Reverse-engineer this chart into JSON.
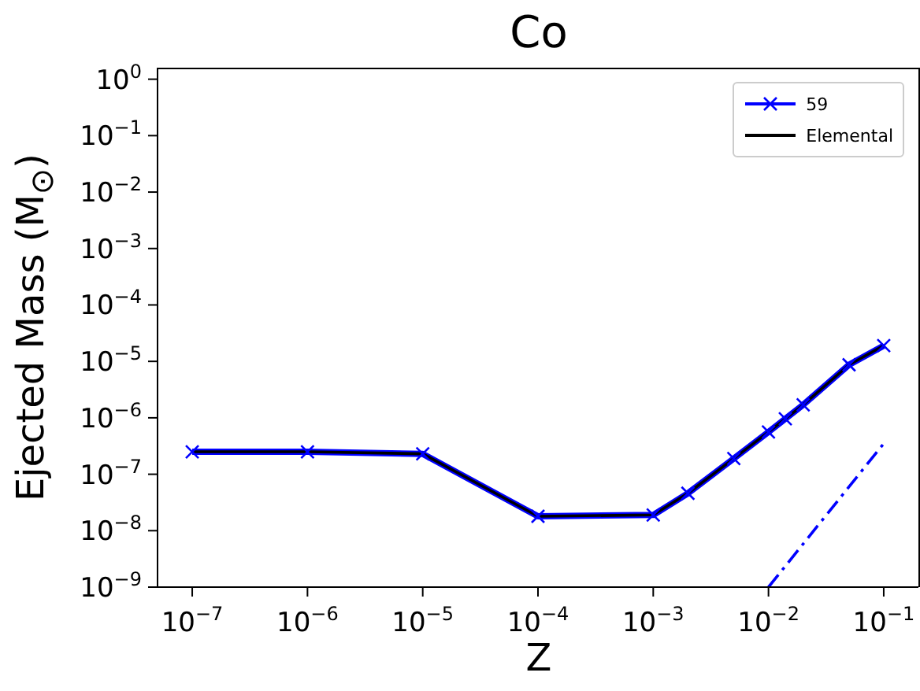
{
  "chart_data": {
    "type": "line",
    "title": "Co",
    "xlabel": "Z",
    "ylabel": "Ejected Mass (M$_{⊙}$)",
    "log": "xy",
    "legend": "top right",
    "xlim": [
      5e-08,
      0.2
    ],
    "ylim": [
      1e-09,
      1.6
    ],
    "xticks": [
      {
        "value": 1e-07,
        "label": "10$^{−7}$"
      },
      {
        "value": 1e-06,
        "label": "10$^{−6}$"
      },
      {
        "value": 1e-05,
        "label": "10$^{−5}$"
      },
      {
        "value": 0.0001,
        "label": "10$^{−4}$"
      },
      {
        "value": 0.001,
        "label": "10$^{−3}$"
      },
      {
        "value": 0.01,
        "label": "10$^{−2}$"
      },
      {
        "value": 0.1,
        "label": "10$^{−1}$"
      }
    ],
    "yticks": [
      {
        "value": 1e-09,
        "label": "10$^{−9}$"
      },
      {
        "value": 1e-08,
        "label": "10$^{−8}$"
      },
      {
        "value": 1e-07,
        "label": "10$^{−7}$"
      },
      {
        "value": 1e-06,
        "label": "10$^{−6}$"
      },
      {
        "value": 1e-05,
        "label": "10$^{−5}$"
      },
      {
        "value": 0.0001,
        "label": "10$^{−4}$"
      },
      {
        "value": 0.001,
        "label": "10$^{−3}$"
      },
      {
        "value": 0.01,
        "label": "10$^{−2}$"
      },
      {
        "value": 0.1,
        "label": "10$^{−1}$"
      },
      {
        "value": 1,
        "label": "10$^{0}$"
      }
    ],
    "series": [
      {
        "name": "59",
        "color": "#0000ff",
        "line_style": "solid",
        "marker": "cross",
        "x": [
          1e-07,
          1e-06,
          1e-05,
          0.0001,
          0.001,
          0.002,
          0.005,
          0.01,
          0.014,
          0.02,
          0.05,
          0.1
        ],
        "values": [
          2.5e-07,
          2.5e-07,
          2.3e-07,
          1.8e-08,
          1.9e-08,
          4.6e-08,
          1.9e-07,
          5.6e-07,
          9.6e-07,
          1.7e-06,
          8.7e-06,
          1.9e-05
        ]
      },
      {
        "name": "Elemental",
        "color": "#000000",
        "line_style": "solid",
        "x": [
          1e-07,
          1e-06,
          1e-05,
          0.0001,
          0.001,
          0.002,
          0.005,
          0.01,
          0.014,
          0.02,
          0.05,
          0.1
        ],
        "values": [
          2.5e-07,
          2.5e-07,
          2.3e-07,
          1.8e-08,
          1.9e-08,
          4.6e-08,
          1.9e-07,
          5.6e-07,
          9.6e-07,
          1.7e-06,
          8.7e-06,
          1.9e-05
        ]
      },
      {
        "color": "#0000ff",
        "line_style": "dashdot",
        "marker": "none",
        "x": [
          0.01,
          0.1
        ],
        "values": [
          1e-09,
          3.5e-07
        ]
      }
    ]
  }
}
